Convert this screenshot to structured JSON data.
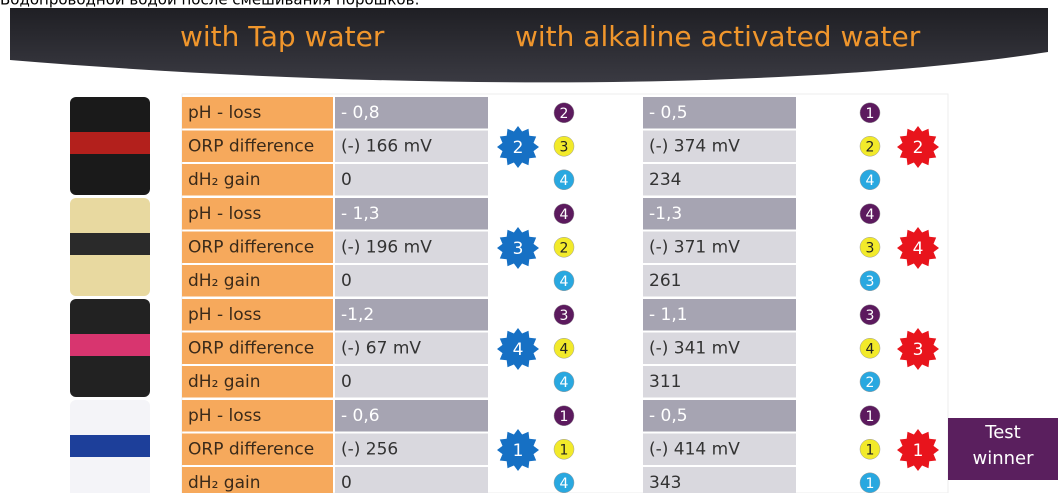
{
  "top_caption": "Водопроводной водой после смешивания порошков:",
  "header": {
    "tap": "with Tap water",
    "alkaline": "with alkaline activated water"
  },
  "products": [
    {
      "labels": [
        "pH - loss",
        "ORP difference",
        "dH₂ gain"
      ],
      "tap": {
        "values": [
          "- 0,8",
          "(-) 166 mV",
          "0"
        ],
        "ranks": [
          2,
          3,
          4
        ],
        "overall": 2
      },
      "alkaline": {
        "values": [
          "- 0,5",
          "(-) 374 mV",
          "234"
        ],
        "ranks": [
          1,
          2,
          4
        ],
        "overall": 2
      }
    },
    {
      "labels": [
        "pH - loss",
        "ORP difference",
        "dH₂ gain"
      ],
      "tap": {
        "values": [
          "- 1,3",
          "(-) 196 mV",
          "0"
        ],
        "ranks": [
          4,
          2,
          4
        ],
        "overall": 3
      },
      "alkaline": {
        "values": [
          "-1,3",
          "(-) 371 mV",
          "261"
        ],
        "ranks": [
          4,
          3,
          3
        ],
        "overall": 4
      }
    },
    {
      "labels": [
        "pH - loss",
        "ORP difference",
        "dH₂ gain"
      ],
      "tap": {
        "values": [
          "-1,2",
          "(-) 67 mV",
          "0"
        ],
        "ranks": [
          3,
          4,
          4
        ],
        "overall": 4
      },
      "alkaline": {
        "values": [
          "- 1,1",
          "(-) 341 mV",
          "311"
        ],
        "ranks": [
          3,
          4,
          2
        ],
        "overall": 3
      }
    },
    {
      "labels": [
        "pH - loss",
        "ORP difference",
        "dH₂ gain"
      ],
      "tap": {
        "values": [
          "- 0,6",
          "(-) 256",
          "0"
        ],
        "ranks": [
          1,
          1,
          4
        ],
        "overall": 1
      },
      "alkaline": {
        "values": [
          "- 0,5",
          "(-) 414 mV",
          "343"
        ],
        "ranks": [
          1,
          1,
          1
        ],
        "overall": 1
      }
    }
  ],
  "test_winner": "Test winner"
}
